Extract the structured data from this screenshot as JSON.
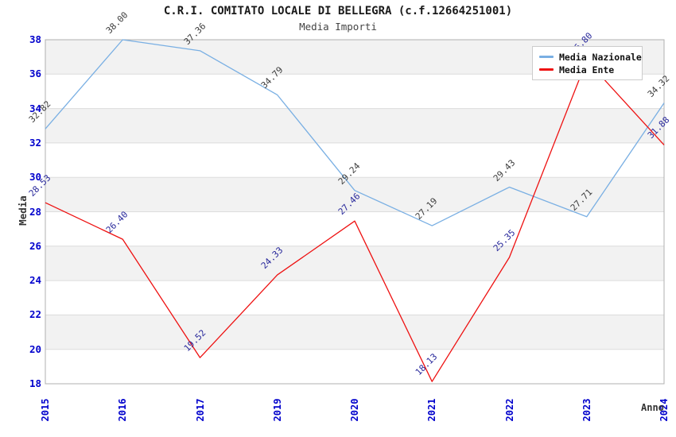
{
  "title": "C.R.I. COMITATO LOCALE DI BELLEGRA (c.f.12664251001)",
  "subtitle": "Media Importi",
  "legend": {
    "items": [
      {
        "label": "Media Nazionale",
        "color": "#79afe3"
      },
      {
        "label": "Media Ente",
        "color": "#ee1111"
      }
    ]
  },
  "colors": {
    "axis_tick": "#0000cc",
    "grid_band": "#f2f2f2",
    "grid_line": "#dcdcdc",
    "plot_border": "#b0b0b0",
    "nazionale_line": "#79afe3",
    "nazionale_label": "#3d3d3d",
    "ente_line": "#ee1111",
    "ente_label": "#28289b"
  },
  "chart_data": {
    "type": "line",
    "title": "C.R.I. COMITATO LOCALE DI BELLEGRA (c.f.12664251001)",
    "subtitle": "Media Importi",
    "xlabel": "Anno",
    "ylabel": "Media",
    "x": [
      "2015",
      "2016",
      "2017",
      "2019",
      "2020",
      "2021",
      "2022",
      "2023",
      "2024"
    ],
    "series": [
      {
        "name": "Media Nazionale",
        "color": "#79afe3",
        "label_color": "#3d3d3d",
        "values": [
          32.82,
          38.0,
          37.36,
          34.79,
          29.24,
          27.19,
          29.43,
          27.71,
          34.32
        ]
      },
      {
        "name": "Media Ente",
        "color": "#ee1111",
        "label_color": "#28289b",
        "values": [
          28.53,
          26.4,
          19.52,
          24.33,
          27.46,
          18.13,
          25.35,
          36.8,
          31.88
        ]
      }
    ],
    "ylim": [
      18,
      38
    ],
    "ytick_step": 2,
    "grid": "horizontal-bands-alternating",
    "legend_position": "top-right",
    "notes": "label of Media Ente 2023 point is mostly hidden behind the legend box"
  }
}
